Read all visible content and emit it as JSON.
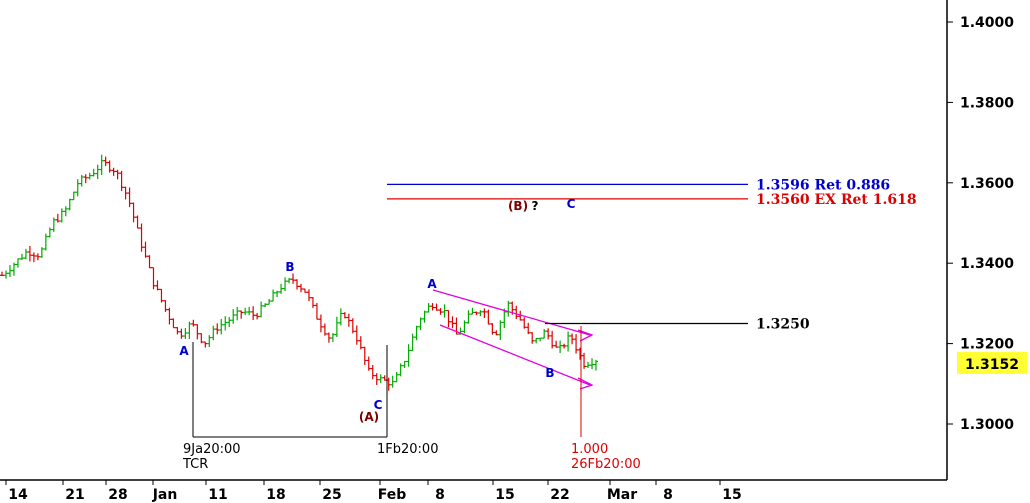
{
  "chart_data": {
    "type": "ohlc",
    "y_axis": {
      "ticks": [
        "1.4000",
        "1.3800",
        "1.3600",
        "1.3400",
        "1.3200",
        "1.3000"
      ],
      "range": [
        1.2885,
        1.409
      ]
    },
    "x_axis": {
      "ticks": [
        "14",
        "21",
        "28",
        "Jan",
        "11",
        "18",
        "25",
        "Feb",
        "8",
        "15",
        "22",
        "Mar",
        "8",
        "15"
      ]
    },
    "current_price": {
      "label": "1.3152",
      "value": 1.3152,
      "color": "#ffff33"
    },
    "series": [
      {
        "name": "price",
        "color_up": "#00aa00",
        "color_down": "#dd0000",
        "path": [
          1.337,
          1.34,
          1.343,
          1.342,
          1.35,
          1.353,
          1.36,
          1.362,
          1.365,
          1.363,
          1.356,
          1.345,
          1.335,
          1.328,
          1.322,
          1.325,
          1.32,
          1.324,
          1.326,
          1.328,
          1.327,
          1.33,
          1.334,
          1.336,
          1.333,
          1.326,
          1.321,
          1.328,
          1.322,
          1.313,
          1.311,
          1.31,
          1.317,
          1.326,
          1.33,
          1.328,
          1.322,
          1.327,
          1.329,
          1.322,
          1.33,
          1.326,
          1.32,
          1.323,
          1.318,
          1.322,
          1.315,
          1.316
        ]
      }
    ],
    "levels": [
      {
        "label": "1.3596 Ret 0.886",
        "value": 1.3596,
        "color": "#0000cc"
      },
      {
        "label": "1.3560 EX Ret 1.618",
        "value": 1.356,
        "color": "#dd0000"
      },
      {
        "label": "1.3250",
        "value": 1.325,
        "color": "#000000"
      }
    ],
    "wave_labels": [
      {
        "text": "A",
        "color": "#0000cc"
      },
      {
        "text": "B",
        "color": "#0000cc"
      },
      {
        "text": "C",
        "color": "#0000cc"
      },
      {
        "text": "(A)",
        "color": "#7a0000"
      },
      {
        "text": "A",
        "color": "#0000cc"
      },
      {
        "text": "B",
        "color": "#0000cc"
      },
      {
        "text": "(B)",
        "color": "#7a0000"
      },
      {
        "text": "?",
        "color": "#000000"
      },
      {
        "text": "C",
        "color": "#0000cc"
      }
    ],
    "time_markers": [
      {
        "lines": [
          "9Ja20:00",
          "TCR"
        ],
        "color": "#000000"
      },
      {
        "lines": [
          "1Fb20:00"
        ],
        "color": "#000000"
      },
      {
        "lines": [
          "1.000",
          "26Fb20:00"
        ],
        "color": "#dd0000"
      }
    ],
    "channel": {
      "color": "#e000e0"
    }
  }
}
